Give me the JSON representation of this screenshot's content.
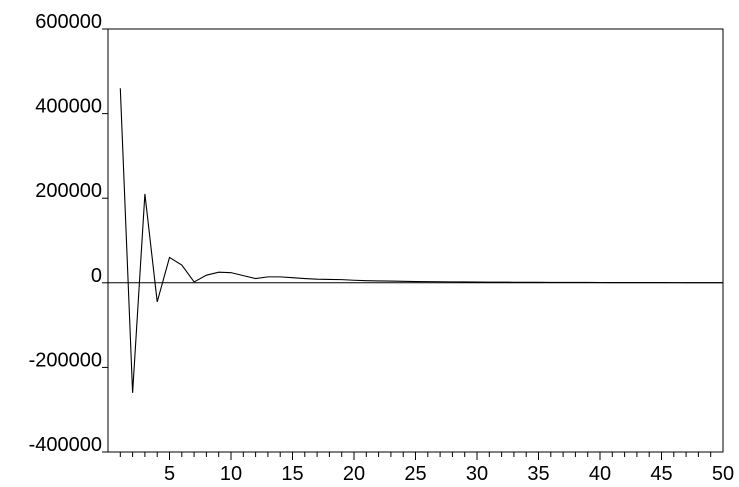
{
  "chart_data": {
    "type": "line",
    "title": "",
    "xlabel": "",
    "ylabel": "",
    "xlim": [
      0,
      50
    ],
    "ylim": [
      -400000,
      600000
    ],
    "grid": false,
    "legend": "none",
    "x_tick_labels": [
      "5",
      "10",
      "15",
      "20",
      "25",
      "30",
      "35",
      "40",
      "45",
      "50"
    ],
    "y_tick_labels": [
      "600000",
      "400000",
      "200000",
      "0",
      "-200000",
      "-400000"
    ],
    "series": [
      {
        "color": "#000000",
        "x": [
          1,
          2,
          3,
          4,
          5,
          6,
          7,
          8,
          9,
          10,
          11,
          12,
          13,
          14,
          15,
          16,
          17,
          18,
          19,
          20,
          21,
          22,
          23,
          24,
          25,
          26,
          27,
          28,
          29,
          30,
          31,
          32,
          33,
          34,
          35,
          36,
          37,
          38,
          39,
          40,
          41,
          42,
          43,
          44,
          45,
          46,
          47,
          48,
          49,
          50
        ],
        "values": [
          460000,
          -260000,
          210000,
          -45000,
          60000,
          42000,
          2000,
          18000,
          25000,
          24000,
          17000,
          10000,
          14000,
          14000,
          12000,
          10000,
          8500,
          8000,
          7500,
          6000,
          5000,
          4500,
          4000,
          3500,
          3000,
          2800,
          2500,
          2200,
          2000,
          1800,
          1500,
          1400,
          1300,
          1200,
          1100,
          1000,
          900,
          850,
          800,
          700,
          650,
          600,
          550,
          500,
          450,
          400,
          350,
          300,
          250,
          200
        ]
      }
    ]
  }
}
